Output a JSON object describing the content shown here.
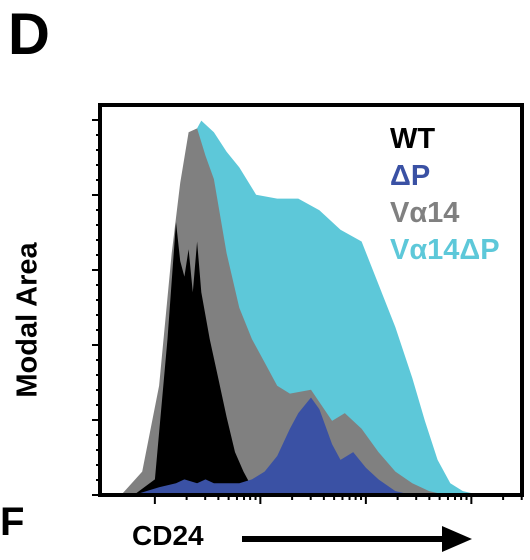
{
  "panel_label": "D",
  "corner_mark": "F",
  "colors": {
    "axes": "#000000",
    "WT": "#000000",
    "dP": "#3a51a4",
    "Va14": "#808080",
    "Va14dP": "#5dc8d9"
  },
  "chart_data": {
    "type": "area",
    "xlabel": "CD24",
    "ylabel": "Modal Area",
    "xlim": [
      0,
      100
    ],
    "ylim": [
      0,
      100
    ],
    "x_scale": "log",
    "grid": false,
    "legend_position": "top-right",
    "series": [
      {
        "name": "Vα14ΔP",
        "color": "#5dc8d9",
        "x": [
          5,
          10,
          15,
          18,
          20,
          22,
          24,
          27,
          30,
          33,
          37,
          42,
          47,
          52,
          57,
          62,
          66,
          70,
          74,
          77,
          80,
          83,
          86,
          90
        ],
        "y": [
          0,
          4,
          30,
          65,
          82,
          92,
          96,
          93,
          88,
          84,
          77,
          76,
          76,
          73,
          68,
          65,
          54,
          43,
          30,
          19,
          9,
          3,
          1,
          0
        ]
      },
      {
        "name": "Vα14",
        "color": "#808080",
        "x": [
          5,
          10,
          14,
          17,
          19,
          21,
          23,
          25,
          27,
          30,
          33,
          36,
          39,
          42,
          45,
          50,
          55,
          58,
          62,
          66,
          70,
          74,
          78,
          82
        ],
        "y": [
          0,
          6,
          28,
          62,
          80,
          93,
          94,
          87,
          81,
          62,
          48,
          40,
          34,
          28,
          26,
          27,
          19,
          21,
          17,
          11,
          6,
          3,
          1,
          0
        ]
      },
      {
        "name": "WT",
        "color": "#000000",
        "x": [
          8,
          13,
          16,
          18,
          19,
          20,
          21,
          22,
          23,
          24,
          26,
          28,
          30,
          32,
          34,
          36,
          38
        ],
        "y": [
          0,
          4,
          40,
          70,
          60,
          56,
          63,
          52,
          65,
          52,
          40,
          30,
          20,
          11,
          6,
          2,
          0
        ]
      },
      {
        "name": "ΔP",
        "color": "#3a51a4",
        "x": [
          8,
          14,
          18,
          20,
          23,
          25,
          27,
          30,
          33,
          36,
          39,
          42,
          45,
          47,
          50,
          52,
          55,
          57,
          60,
          63,
          66,
          70,
          74
        ],
        "y": [
          0,
          2,
          3,
          4,
          3,
          4,
          3,
          3,
          3,
          4,
          6,
          10,
          17,
          21,
          25,
          22,
          13,
          9,
          11,
          7,
          4,
          1,
          0
        ]
      }
    ],
    "legend": [
      "WT",
      "ΔP",
      "Vα14",
      "Vα14ΔP"
    ]
  }
}
